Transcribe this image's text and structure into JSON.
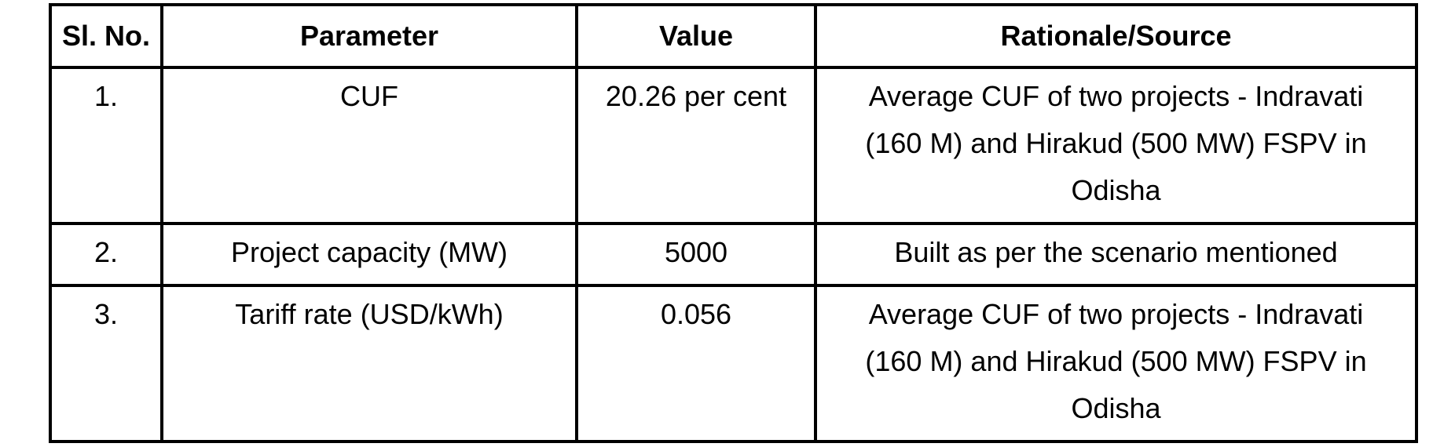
{
  "table": {
    "headers": [
      "Sl. No.",
      "Parameter",
      "Value",
      "Rationale/Source"
    ],
    "rows": [
      {
        "sl_no": "1.",
        "parameter": "CUF",
        "value": "20.26 per cent",
        "rationale": "Average CUF of two projects - Indravati (160 M) and Hirakud (500 MW) FSPV in Odisha"
      },
      {
        "sl_no": "2.",
        "parameter": "Project capacity (MW)",
        "value": "5000",
        "rationale": "Built as per the scenario mentioned"
      },
      {
        "sl_no": "3.",
        "parameter": "Tariff rate (USD/kWh)",
        "value": "0.056",
        "rationale": "Average CUF of two projects - Indravati (160 M) and Hirakud (500 MW) FSPV in Odisha"
      }
    ]
  }
}
